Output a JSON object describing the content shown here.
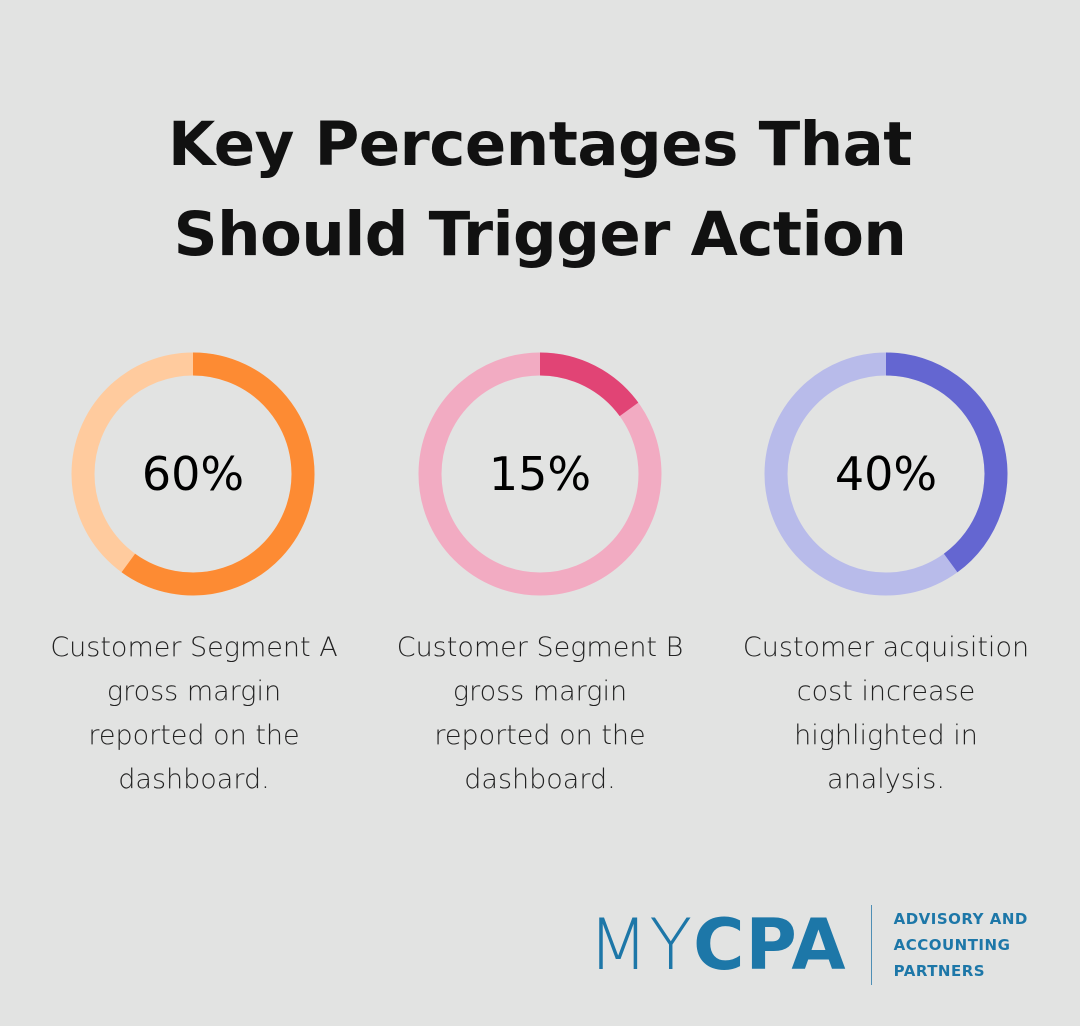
{
  "title_lines": [
    "Key Percentages That",
    "Should Trigger Action"
  ],
  "chart_data": [
    {
      "type": "pie",
      "value": 60,
      "label": "60%",
      "caption": "Customer Segment A\ngross margin\nreported on the\ndashboard.",
      "colors": {
        "fill": "#fd8b33",
        "track": "#ffcb9e"
      }
    },
    {
      "type": "pie",
      "value": 15,
      "label": "15%",
      "caption": "Customer Segment B\ngross margin\nreported on the\ndashboard.",
      "colors": {
        "fill": "#e14475",
        "track": "#f2abc2"
      }
    },
    {
      "type": "pie",
      "value": 40,
      "label": "40%",
      "caption": "Customer acquisition\ncost increase\nhighlighted in\nanalysis.",
      "colors": {
        "fill": "#6466d1",
        "track": "#b8bbea"
      }
    }
  ],
  "logo": {
    "wordmark_my": "MY",
    "wordmark_cpa": "CPA",
    "tagline": [
      "ADVISORY AND",
      "ACCOUNTING",
      "PARTNERS"
    ],
    "color": "#1d77a8"
  }
}
